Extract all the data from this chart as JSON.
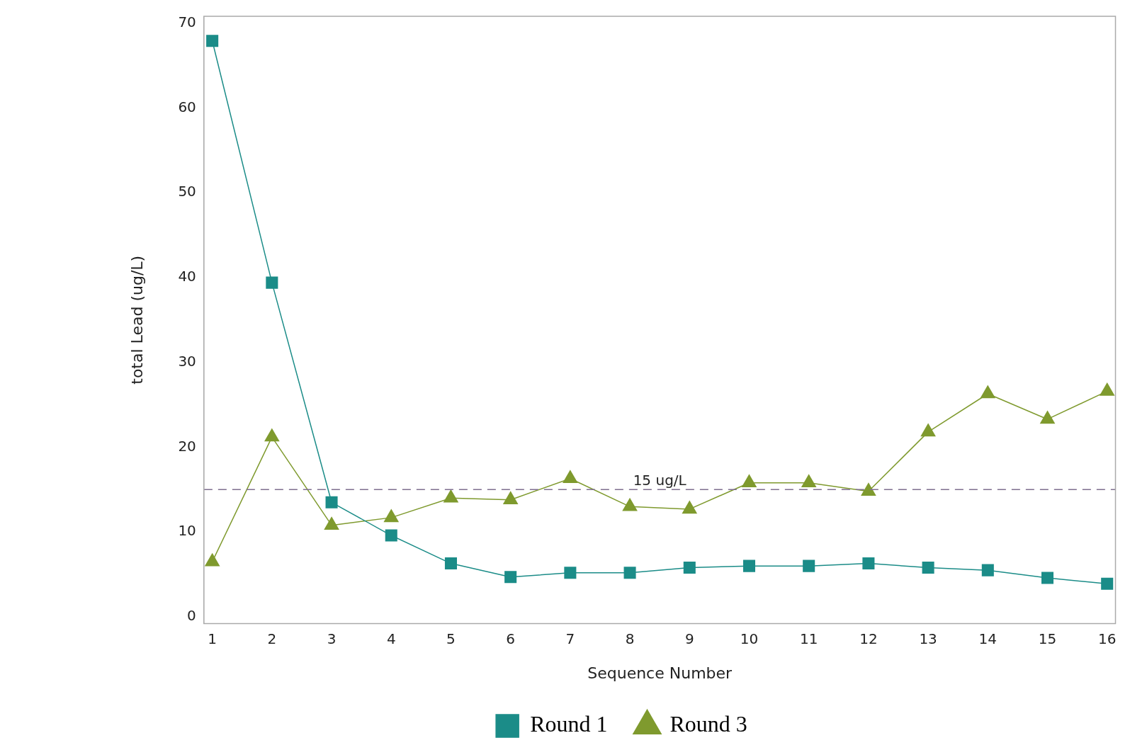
{
  "chart_data": {
    "type": "line",
    "xlabel": "Sequence Number",
    "ylabel": "total Lead (ug/L)",
    "x": [
      1,
      2,
      3,
      4,
      5,
      6,
      7,
      8,
      9,
      10,
      11,
      12,
      13,
      14,
      15,
      16
    ],
    "series": [
      {
        "name": "Round 1",
        "color": "#1b8c88",
        "marker": "square",
        "values": [
          67.9,
          39.4,
          13.5,
          9.6,
          6.3,
          4.7,
          5.2,
          5.2,
          5.8,
          6.0,
          6.0,
          6.3,
          5.8,
          5.5,
          4.6,
          3.9
        ]
      },
      {
        "name": "Round 3",
        "color": "#7f9a2e",
        "marker": "triangle",
        "values": [
          6.5,
          21.2,
          10.8,
          11.7,
          14.0,
          13.8,
          16.3,
          13.0,
          12.7,
          15.8,
          15.8,
          14.8,
          21.8,
          26.3,
          23.3,
          26.6
        ]
      }
    ],
    "xlim": [
      0.86,
      16.14
    ],
    "xticks": [
      1,
      2,
      3,
      4,
      5,
      6,
      7,
      8,
      9,
      10,
      11,
      12,
      13,
      14,
      15,
      16
    ],
    "ylim": [
      -0.8,
      70.8
    ],
    "yticks": [
      0,
      10,
      20,
      30,
      40,
      50,
      60,
      70
    ],
    "ref_lines": [
      {
        "axis": "y",
        "value": 15,
        "label": "15 ug/L",
        "color": "#7f6f8f",
        "line_style": "dashed"
      }
    ],
    "grid": false,
    "legend": "bottom",
    "line_style": "solid"
  }
}
